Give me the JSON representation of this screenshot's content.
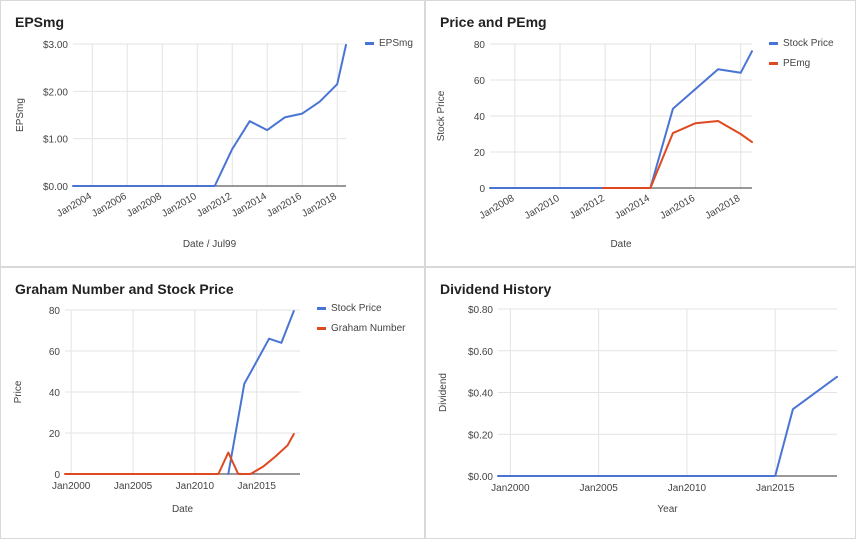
{
  "chart_data": [
    {
      "type": "line",
      "title": "EPSmg",
      "xlabel": "Date / Jul99",
      "ylabel": "EPSmg",
      "x_min": 2002.9,
      "x_max": 2018.5,
      "ylim": [
        0,
        3
      ],
      "y_ticks": [
        0,
        1,
        2,
        3
      ],
      "y_tick_labels": [
        "$0.00",
        "$1.00",
        "$2.00",
        "$3.00"
      ],
      "x_ticks": [
        2004,
        2006,
        2008,
        2010,
        2012,
        2014,
        2016,
        2018
      ],
      "x_tick_labels": [
        "Jan2004",
        "Jan2006",
        "Jan2008",
        "Jan2010",
        "Jan2012",
        "Jan2014",
        "Jan2016",
        "Jan2018"
      ],
      "x_label_rotate": true,
      "legend_position": "top-right",
      "series": [
        {
          "name": "EPSmg",
          "color": "#4a74d4",
          "points": [
            [
              2002.9,
              0
            ],
            [
              2011.0,
              0
            ],
            [
              2012.0,
              0.78
            ],
            [
              2013.0,
              1.37
            ],
            [
              2014.0,
              1.18
            ],
            [
              2015.0,
              1.45
            ],
            [
              2016.0,
              1.53
            ],
            [
              2017.0,
              1.78
            ],
            [
              2018.0,
              2.15
            ],
            [
              2018.5,
              2.98
            ]
          ]
        }
      ]
    },
    {
      "type": "line",
      "title": "Price and PEmg",
      "xlabel": "Date",
      "ylabel": "Stock Price",
      "x_min": 2006.9,
      "x_max": 2018.5,
      "ylim": [
        0,
        80
      ],
      "y_ticks": [
        0,
        20,
        40,
        60,
        80
      ],
      "y_tick_labels": [
        "0",
        "20",
        "40",
        "60",
        "80"
      ],
      "x_ticks": [
        2008,
        2010,
        2012,
        2014,
        2016,
        2018
      ],
      "x_tick_labels": [
        "Jan2008",
        "Jan2010",
        "Jan2012",
        "Jan2014",
        "Jan2016",
        "Jan2018"
      ],
      "x_label_rotate": true,
      "legend_position": "top-right",
      "series": [
        {
          "name": "Stock Price",
          "color": "#4a74d4",
          "points": [
            [
              2006.9,
              0
            ],
            [
              2014.0,
              0
            ],
            [
              2015.0,
              44
            ],
            [
              2016.0,
              55
            ],
            [
              2017.0,
              66
            ],
            [
              2018.0,
              64
            ],
            [
              2018.5,
              76
            ]
          ]
        },
        {
          "name": "PEmg",
          "color": "#e0481f",
          "points": [
            [
              2011.9,
              0
            ],
            [
              2014.0,
              0
            ],
            [
              2015.0,
              30.5
            ],
            [
              2016.0,
              36
            ],
            [
              2017.0,
              37.2
            ],
            [
              2018.0,
              30
            ],
            [
              2018.5,
              25.5
            ]
          ]
        }
      ]
    },
    {
      "type": "line",
      "title": "Graham Number and Stock Price",
      "xlabel": "Date",
      "ylabel": "Price",
      "x_min": 1999.5,
      "x_max": 2018.5,
      "ylim": [
        0,
        80
      ],
      "y_ticks": [
        0,
        20,
        40,
        60,
        80
      ],
      "y_tick_labels": [
        "0",
        "20",
        "40",
        "60",
        "80"
      ],
      "x_ticks": [
        2000,
        2005,
        2010,
        2015
      ],
      "x_tick_labels": [
        "Jan2000",
        "Jan2005",
        "Jan2010",
        "Jan2015"
      ],
      "x_label_rotate": false,
      "legend_position": "top-right",
      "series": [
        {
          "name": "Stock Price",
          "color": "#4a74d4",
          "points": [
            [
              2012.7,
              0
            ],
            [
              2014.0,
              44
            ],
            [
              2015.0,
              55
            ],
            [
              2016.0,
              66
            ],
            [
              2017.0,
              64
            ],
            [
              2018.0,
              79.5
            ]
          ]
        },
        {
          "name": "Graham Number",
          "color": "#e0481f",
          "points": [
            [
              1999.5,
              0
            ],
            [
              2011.9,
              0
            ],
            [
              2012.7,
              10.5
            ],
            [
              2013.5,
              0
            ],
            [
              2014.5,
              0
            ],
            [
              2015.5,
              3.5
            ],
            [
              2016.5,
              8.5
            ],
            [
              2017.5,
              14
            ],
            [
              2018.0,
              19.5
            ]
          ]
        }
      ]
    },
    {
      "type": "line",
      "title": "Dividend History",
      "xlabel": "Year",
      "ylabel": "Dividend",
      "x_min": 1999.3,
      "x_max": 2018.5,
      "ylim": [
        0,
        0.8
      ],
      "y_ticks": [
        0,
        0.2,
        0.4,
        0.6,
        0.8
      ],
      "y_tick_labels": [
        "$0.00",
        "$0.20",
        "$0.40",
        "$0.60",
        "$0.80"
      ],
      "x_ticks": [
        2000,
        2005,
        2010,
        2015
      ],
      "x_tick_labels": [
        "Jan2000",
        "Jan2005",
        "Jan2010",
        "Jan2015"
      ],
      "x_label_rotate": false,
      "legend_position": "none",
      "series": [
        {
          "name": "",
          "color": "#4a74d4",
          "points": [
            [
              1999.3,
              0
            ],
            [
              2015.0,
              0
            ],
            [
              2016.0,
              0.32
            ],
            [
              2018.5,
              0.475
            ]
          ]
        }
      ]
    }
  ]
}
